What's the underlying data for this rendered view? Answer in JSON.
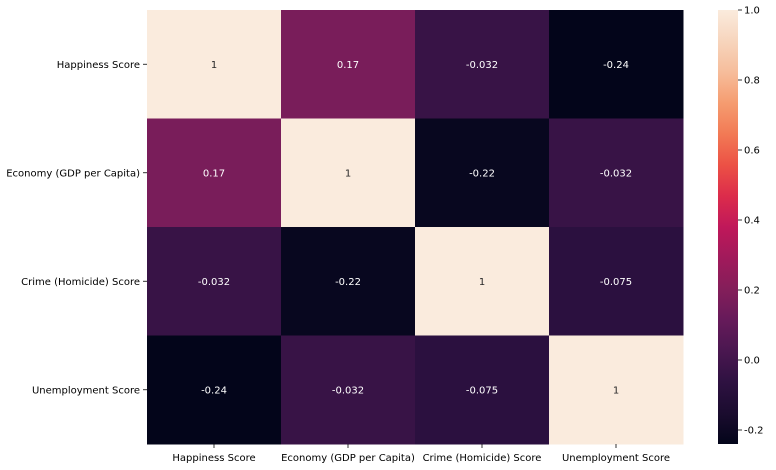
{
  "chart_data": {
    "type": "heatmap",
    "rows": [
      "Happiness Score",
      "Economy (GDP per Capita)",
      "Crime (Homicide) Score",
      "Unemployment Score"
    ],
    "columns": [
      "Happiness Score",
      "Economy (GDP per Capita)",
      "Crime (Homicide) Score",
      "Unemployment Score"
    ],
    "values": [
      [
        1,
        0.17,
        -0.032,
        -0.24
      ],
      [
        0.17,
        1,
        -0.22,
        -0.032
      ],
      [
        -0.032,
        -0.22,
        1,
        -0.075
      ],
      [
        -0.24,
        -0.032,
        -0.075,
        1
      ]
    ],
    "cell_labels": [
      [
        "1",
        "0.17",
        "-0.032",
        "-0.24"
      ],
      [
        "0.17",
        "1",
        "-0.22",
        "-0.032"
      ],
      [
        "-0.032",
        "-0.22",
        "1",
        "-0.075"
      ],
      [
        "-0.24",
        "-0.032",
        "-0.075",
        "1"
      ]
    ],
    "colorbar": {
      "vmin": -0.24,
      "vmax": 1.0,
      "ticks": [
        "-0.2",
        "0.0",
        "0.2",
        "0.4",
        "0.6",
        "0.8",
        "1.0"
      ],
      "tick_values": [
        -0.2,
        0.0,
        0.2,
        0.4,
        0.6,
        0.8,
        1.0
      ],
      "colormap": "rocket"
    },
    "title": "",
    "xlabel": "",
    "ylabel": "",
    "colors": {
      "cmap_stops": [
        "#03051a",
        "#1b0c2f",
        "#2e1141",
        "#4a1750",
        "#661a5a",
        "#841e5a",
        "#a11a5b",
        "#c0185a",
        "#dc2c4b",
        "#ec5145",
        "#f27a55",
        "#f59c70",
        "#f6bd9b",
        "#f7d5bd",
        "#faebdd"
      ],
      "text_on_dark": "#ffffff",
      "text_on_light": "#262626"
    }
  }
}
